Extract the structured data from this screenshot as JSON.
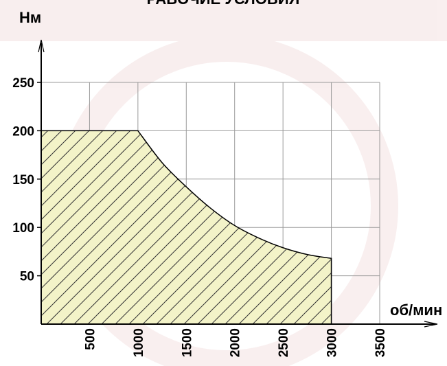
{
  "chart_data": {
    "type": "area",
    "title": "РАБОЧИЕ УСЛОВИЯ",
    "xlabel": "об/мин",
    "ylabel": "Нм",
    "xlim": [
      0,
      3500
    ],
    "ylim": [
      0,
      250
    ],
    "x_ticks": [
      500,
      1000,
      1500,
      2000,
      2500,
      3000,
      3500
    ],
    "y_ticks": [
      50,
      100,
      150,
      200,
      250
    ],
    "grid": true,
    "legend": "none",
    "fill_color": "#f3f3c8",
    "hatch": true,
    "series": [
      {
        "x": [
          0,
          1000,
          1250,
          1500,
          1750,
          2000,
          2250,
          2500,
          2750,
          3000,
          3000
        ],
        "y": [
          200,
          200,
          167,
          142,
          120,
          102,
          89,
          79,
          72,
          68,
          0
        ]
      }
    ]
  }
}
